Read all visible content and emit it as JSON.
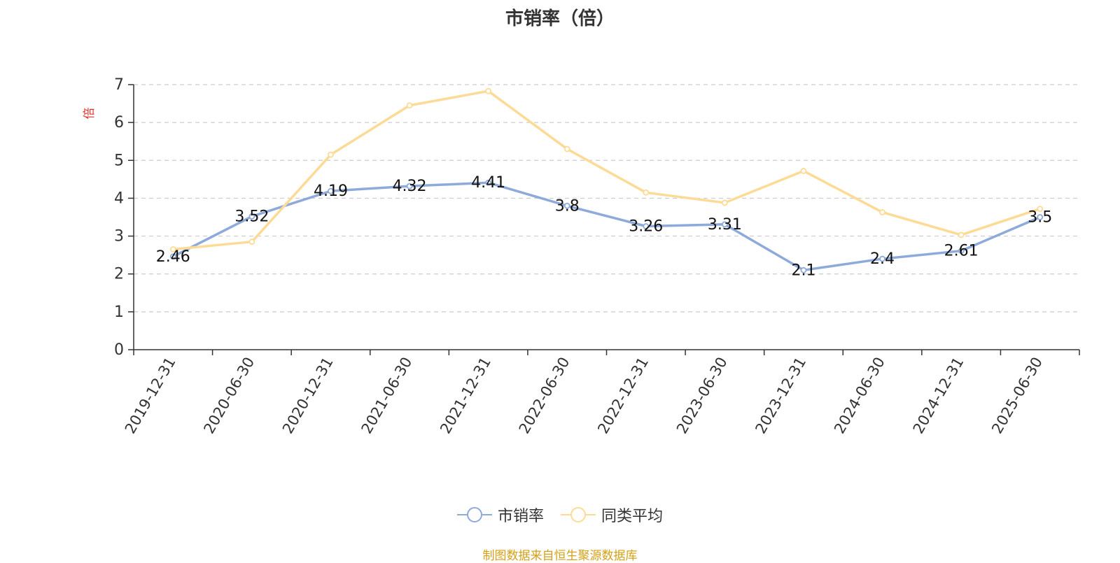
{
  "chart_data": {
    "type": "line",
    "title": "市销率（倍）",
    "ylabel": "倍",
    "xlabel": "",
    "categories": [
      "2019-12-31",
      "2020-06-30",
      "2020-12-31",
      "2021-06-30",
      "2021-12-31",
      "2022-06-30",
      "2022-12-31",
      "2023-06-30",
      "2023-12-31",
      "2024-06-30",
      "2024-12-31",
      "2025-06-30"
    ],
    "ylim": [
      0,
      7
    ],
    "yticks": [
      0,
      1,
      2,
      3,
      4,
      5,
      6,
      7
    ],
    "grid": true,
    "legend_position": "bottom-center",
    "series": [
      {
        "name": "市销率",
        "color": "#8eaadb",
        "labels": true,
        "values": [
          2.46,
          3.52,
          4.19,
          4.32,
          4.41,
          3.8,
          3.26,
          3.31,
          2.1,
          2.4,
          2.61,
          3.5
        ]
      },
      {
        "name": "同类平均",
        "color": "#fddb96",
        "labels": false,
        "values": [
          2.65,
          2.85,
          5.15,
          6.45,
          6.83,
          5.3,
          4.15,
          3.88,
          4.72,
          3.63,
          3.03,
          3.72
        ]
      }
    ]
  },
  "source_note": "制图数据来自恒生聚源数据库"
}
